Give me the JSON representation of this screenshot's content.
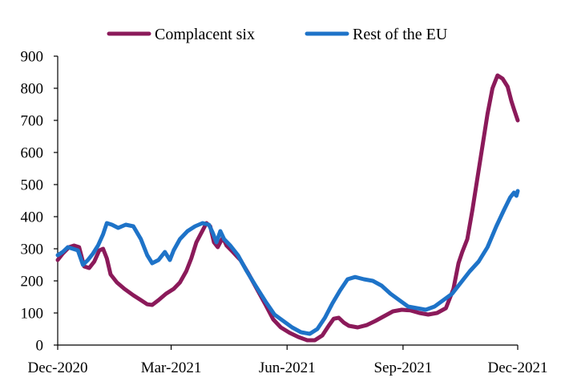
{
  "chart_data": {
    "type": "line",
    "title": "",
    "xlabel": "",
    "ylabel": "",
    "ylim": [
      0,
      900
    ],
    "yticks": [
      0,
      100,
      200,
      300,
      400,
      500,
      600,
      700,
      800,
      900
    ],
    "xlim": [
      "2020-12-01",
      "2021-12-01"
    ],
    "xticks": [
      {
        "date": "2020-12-01",
        "label": "Dec-2020"
      },
      {
        "date": "2021-03-01",
        "label": "Mar-2021"
      },
      {
        "date": "2021-06-01",
        "label": "Jun-2021"
      },
      {
        "date": "2021-09-01",
        "label": "Sep-2021"
      },
      {
        "date": "2021-12-01",
        "label": "Dec-2021"
      }
    ],
    "grid": false,
    "legend_position": "top",
    "series": [
      {
        "name": "Complacent six",
        "color": "#8B1A5A",
        "points": [
          [
            "2020-12-01",
            265
          ],
          [
            "2020-12-05",
            285
          ],
          [
            "2020-12-10",
            305
          ],
          [
            "2020-12-14",
            310
          ],
          [
            "2020-12-18",
            305
          ],
          [
            "2020-12-22",
            245
          ],
          [
            "2020-12-26",
            240
          ],
          [
            "2020-12-30",
            260
          ],
          [
            "2021-01-03",
            295
          ],
          [
            "2021-01-06",
            300
          ],
          [
            "2021-01-09",
            270
          ],
          [
            "2021-01-12",
            220
          ],
          [
            "2021-01-17",
            195
          ],
          [
            "2021-01-23",
            175
          ],
          [
            "2021-01-30",
            155
          ],
          [
            "2021-02-05",
            140
          ],
          [
            "2021-02-10",
            127
          ],
          [
            "2021-02-14",
            125
          ],
          [
            "2021-02-19",
            140
          ],
          [
            "2021-02-25",
            160
          ],
          [
            "2021-03-03",
            175
          ],
          [
            "2021-03-08",
            195
          ],
          [
            "2021-03-13",
            230
          ],
          [
            "2021-03-17",
            270
          ],
          [
            "2021-03-21",
            320
          ],
          [
            "2021-03-25",
            350
          ],
          [
            "2021-03-29",
            380
          ],
          [
            "2021-04-01",
            370
          ],
          [
            "2021-04-04",
            320
          ],
          [
            "2021-04-07",
            305
          ],
          [
            "2021-04-11",
            335
          ],
          [
            "2021-04-14",
            310
          ],
          [
            "2021-04-19",
            290
          ],
          [
            "2021-04-25",
            265
          ],
          [
            "2021-05-01",
            225
          ],
          [
            "2021-05-08",
            175
          ],
          [
            "2021-05-15",
            125
          ],
          [
            "2021-05-21",
            80
          ],
          [
            "2021-05-27",
            55
          ],
          [
            "2021-06-03",
            38
          ],
          [
            "2021-06-10",
            25
          ],
          [
            "2021-06-17",
            15
          ],
          [
            "2021-06-23",
            15
          ],
          [
            "2021-06-29",
            30
          ],
          [
            "2021-07-04",
            60
          ],
          [
            "2021-07-08",
            82
          ],
          [
            "2021-07-12",
            85
          ],
          [
            "2021-07-16",
            70
          ],
          [
            "2021-07-20",
            60
          ],
          [
            "2021-07-27",
            55
          ],
          [
            "2021-08-03",
            62
          ],
          [
            "2021-08-10",
            75
          ],
          [
            "2021-08-17",
            90
          ],
          [
            "2021-08-24",
            105
          ],
          [
            "2021-08-31",
            110
          ],
          [
            "2021-09-07",
            108
          ],
          [
            "2021-09-14",
            100
          ],
          [
            "2021-09-21",
            95
          ],
          [
            "2021-09-28",
            100
          ],
          [
            "2021-10-05",
            115
          ],
          [
            "2021-10-11",
            175
          ],
          [
            "2021-10-15",
            255
          ],
          [
            "2021-10-18",
            290
          ],
          [
            "2021-10-22",
            330
          ],
          [
            "2021-10-26",
            420
          ],
          [
            "2021-10-30",
            520
          ],
          [
            "2021-11-03",
            620
          ],
          [
            "2021-11-07",
            720
          ],
          [
            "2021-11-11",
            800
          ],
          [
            "2021-11-15",
            840
          ],
          [
            "2021-11-19",
            830
          ],
          [
            "2021-11-23",
            805
          ],
          [
            "2021-11-26",
            760
          ],
          [
            "2021-11-28",
            735
          ],
          [
            "2021-12-01",
            700
          ]
        ]
      },
      {
        "name": "Rest of the EU",
        "color": "#1E73C8",
        "points": [
          [
            "2020-12-01",
            280
          ],
          [
            "2020-12-05",
            290
          ],
          [
            "2020-12-09",
            305
          ],
          [
            "2020-12-13",
            300
          ],
          [
            "2020-12-17",
            295
          ],
          [
            "2020-12-21",
            250
          ],
          [
            "2020-12-25",
            265
          ],
          [
            "2020-12-29",
            285
          ],
          [
            "2021-01-02",
            310
          ],
          [
            "2021-01-06",
            345
          ],
          [
            "2021-01-09",
            380
          ],
          [
            "2021-01-13",
            375
          ],
          [
            "2021-01-18",
            365
          ],
          [
            "2021-01-24",
            375
          ],
          [
            "2021-01-30",
            370
          ],
          [
            "2021-02-05",
            330
          ],
          [
            "2021-02-10",
            280
          ],
          [
            "2021-02-14",
            255
          ],
          [
            "2021-02-19",
            265
          ],
          [
            "2021-02-24",
            290
          ],
          [
            "2021-02-28",
            265
          ],
          [
            "2021-03-03",
            295
          ],
          [
            "2021-03-08",
            330
          ],
          [
            "2021-03-14",
            355
          ],
          [
            "2021-03-20",
            370
          ],
          [
            "2021-03-26",
            380
          ],
          [
            "2021-03-31",
            375
          ],
          [
            "2021-04-03",
            350
          ],
          [
            "2021-04-06",
            320
          ],
          [
            "2021-04-09",
            355
          ],
          [
            "2021-04-12",
            330
          ],
          [
            "2021-04-17",
            310
          ],
          [
            "2021-04-23",
            280
          ],
          [
            "2021-04-30",
            230
          ],
          [
            "2021-05-07",
            185
          ],
          [
            "2021-05-15",
            135
          ],
          [
            "2021-05-22",
            95
          ],
          [
            "2021-05-29",
            75
          ],
          [
            "2021-06-05",
            55
          ],
          [
            "2021-06-12",
            40
          ],
          [
            "2021-06-19",
            35
          ],
          [
            "2021-06-25",
            50
          ],
          [
            "2021-07-01",
            85
          ],
          [
            "2021-07-07",
            130
          ],
          [
            "2021-07-13",
            170
          ],
          [
            "2021-07-19",
            205
          ],
          [
            "2021-07-25",
            212
          ],
          [
            "2021-08-01",
            205
          ],
          [
            "2021-08-08",
            200
          ],
          [
            "2021-08-15",
            185
          ],
          [
            "2021-08-22",
            160
          ],
          [
            "2021-08-29",
            140
          ],
          [
            "2021-09-05",
            120
          ],
          [
            "2021-09-12",
            115
          ],
          [
            "2021-09-19",
            110
          ],
          [
            "2021-09-26",
            120
          ],
          [
            "2021-10-03",
            140
          ],
          [
            "2021-10-10",
            160
          ],
          [
            "2021-10-17",
            195
          ],
          [
            "2021-10-24",
            230
          ],
          [
            "2021-10-31",
            260
          ],
          [
            "2021-11-07",
            305
          ],
          [
            "2021-11-14",
            370
          ],
          [
            "2021-11-20",
            420
          ],
          [
            "2021-11-25",
            460
          ],
          [
            "2021-11-28",
            475
          ],
          [
            "2021-11-30",
            465
          ],
          [
            "2021-12-01",
            480
          ]
        ]
      }
    ]
  }
}
